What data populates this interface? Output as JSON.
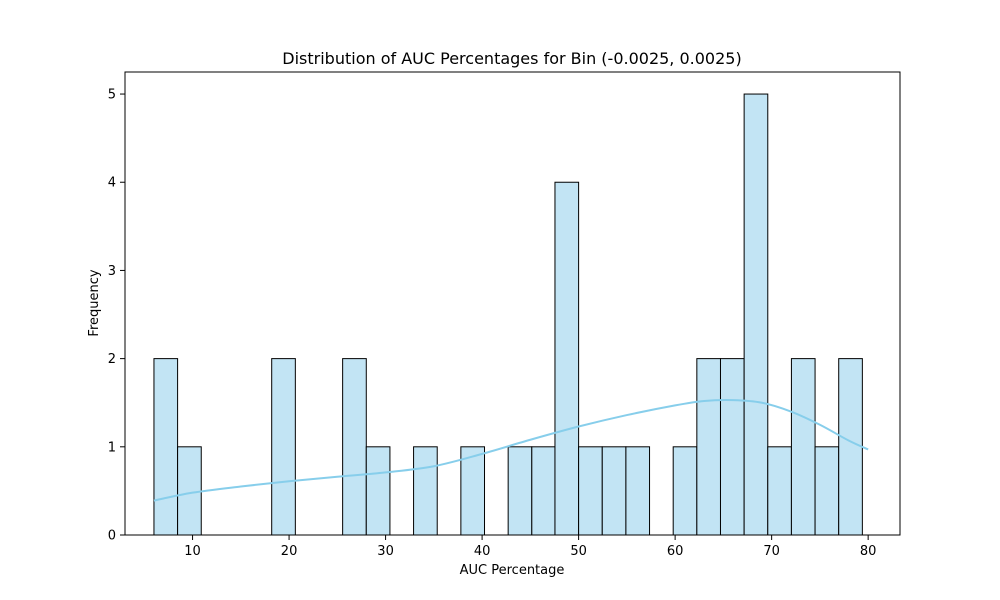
{
  "chart_data": {
    "type": "bar",
    "title": "Distribution of AUC Percentages for Bin (-0.0025, 0.0025)",
    "xlabel": "AUC Percentage",
    "ylabel": "Frequency",
    "xlim": [
      3.0,
      83.3
    ],
    "ylim": [
      0,
      5.25
    ],
    "xticks": [
      10,
      20,
      30,
      40,
      50,
      60,
      70,
      80
    ],
    "yticks": [
      0,
      1,
      2,
      3,
      4,
      5
    ],
    "bar_color": "#c2e4f4",
    "bar_edge_color": "#000000",
    "kde_color": "#87ceeb",
    "grid": false,
    "bins": [
      {
        "x0": 6.0,
        "x1": 8.45,
        "count": 2
      },
      {
        "x0": 8.45,
        "x1": 10.9,
        "count": 1
      },
      {
        "x0": 18.2,
        "x1": 20.65,
        "count": 2
      },
      {
        "x0": 25.55,
        "x1": 28.0,
        "count": 2
      },
      {
        "x0": 28.0,
        "x1": 30.45,
        "count": 1
      },
      {
        "x0": 32.9,
        "x1": 35.35,
        "count": 1
      },
      {
        "x0": 37.8,
        "x1": 40.25,
        "count": 1
      },
      {
        "x0": 42.7,
        "x1": 45.15,
        "count": 1
      },
      {
        "x0": 45.15,
        "x1": 47.55,
        "count": 1
      },
      {
        "x0": 47.55,
        "x1": 50.0,
        "count": 4
      },
      {
        "x0": 50.0,
        "x1": 52.45,
        "count": 1
      },
      {
        "x0": 52.45,
        "x1": 54.9,
        "count": 1
      },
      {
        "x0": 54.9,
        "x1": 57.35,
        "count": 1
      },
      {
        "x0": 59.8,
        "x1": 62.25,
        "count": 1
      },
      {
        "x0": 62.25,
        "x1": 64.7,
        "count": 2
      },
      {
        "x0": 64.7,
        "x1": 67.15,
        "count": 2
      },
      {
        "x0": 67.15,
        "x1": 69.6,
        "count": 5
      },
      {
        "x0": 69.6,
        "x1": 72.05,
        "count": 1
      },
      {
        "x0": 72.05,
        "x1": 74.5,
        "count": 2
      },
      {
        "x0": 74.5,
        "x1": 76.95,
        "count": 1
      },
      {
        "x0": 76.95,
        "x1": 79.4,
        "count": 2
      }
    ],
    "kde": {
      "x": [
        6,
        10,
        15,
        20,
        25,
        30,
        35,
        40,
        45,
        50,
        55,
        60,
        63,
        66,
        69,
        72,
        75,
        78,
        80
      ],
      "y": [
        0.39,
        0.48,
        0.55,
        0.61,
        0.66,
        0.71,
        0.78,
        0.92,
        1.08,
        1.23,
        1.36,
        1.47,
        1.52,
        1.53,
        1.5,
        1.4,
        1.25,
        1.07,
        0.97
      ]
    }
  }
}
